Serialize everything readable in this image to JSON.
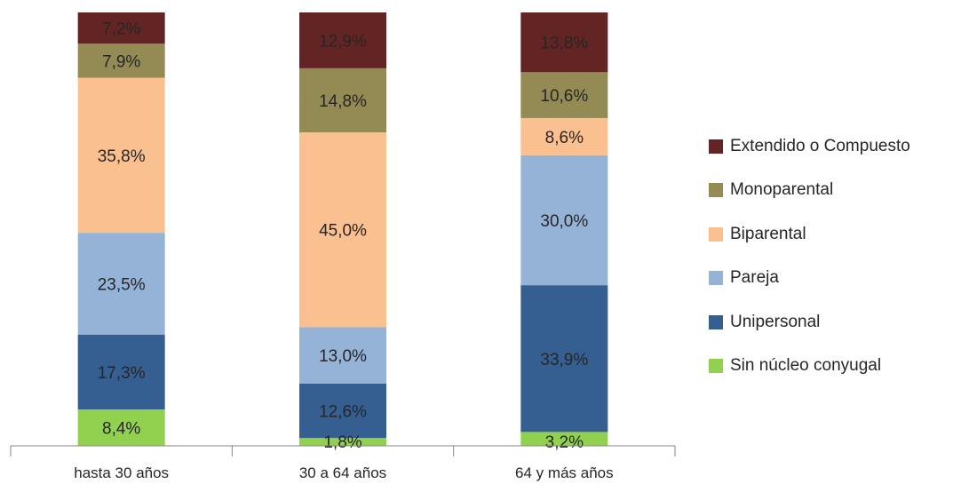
{
  "chart_data": {
    "type": "bar",
    "stacked": true,
    "percent": true,
    "categories": [
      "hasta 30 años",
      "30 a 64 años",
      "64 y más años"
    ],
    "series": [
      {
        "name": "Sin núcleo conyugal",
        "color": "#92D050",
        "values": [
          8.4,
          1.8,
          3.2
        ],
        "labels": [
          "8,4%",
          "1,8%",
          "3,2%"
        ]
      },
      {
        "name": "Unipersonal",
        "color": "#355F91",
        "values": [
          17.3,
          12.6,
          33.9
        ],
        "labels": [
          "17,3%",
          "12,6%",
          "33,9%"
        ]
      },
      {
        "name": "Pareja",
        "color": "#95B3D7",
        "values": [
          23.5,
          13.0,
          30.0
        ],
        "labels": [
          "23,5%",
          "13,0%",
          "30,0%"
        ]
      },
      {
        "name": "Biparental",
        "color": "#FAC090",
        "values": [
          35.8,
          45.0,
          8.6
        ],
        "labels": [
          "35,8%",
          "45,0%",
          "8,6%"
        ]
      },
      {
        "name": "Monoparental",
        "color": "#948A54",
        "values": [
          7.9,
          14.8,
          10.6
        ],
        "labels": [
          "7,9%",
          "14,8%",
          "10,6%"
        ]
      },
      {
        "name": "Extendido o Compuesto",
        "color": "#632523",
        "values": [
          7.2,
          12.9,
          13.8
        ],
        "labels": [
          "7,2%",
          "12,9%",
          "13,8%"
        ]
      }
    ],
    "legend_order": [
      "Extendido o Compuesto",
      "Monoparental",
      "Biparental",
      "Pareja",
      "Unipersonal",
      "Sin núcleo conyugal"
    ],
    "legend_position": "right",
    "ylim": [
      0,
      100
    ],
    "grid": false
  }
}
